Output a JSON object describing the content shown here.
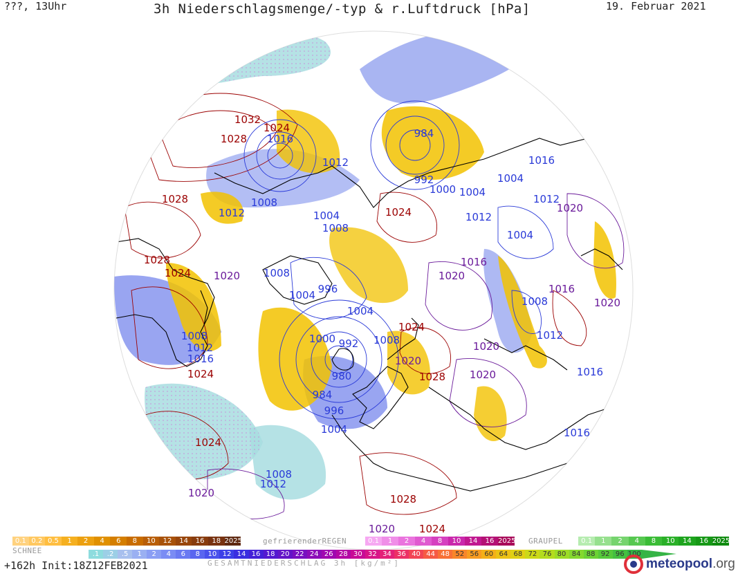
{
  "header": {
    "left": "???, 13Uhr",
    "title": "3h Niederschlagsmenge/-typ & r.Luftdruck [hPa]",
    "date": "19. Februar 2021"
  },
  "colors": {
    "high": "#9b0000",
    "low": "#2a3ad8",
    "mid": "#6a1a9a",
    "snow_shade": "#a8dde0",
    "rain_shade": "#f2c200",
    "coast": "#000000"
  },
  "pressure_labels": [
    {
      "text": "1032",
      "kind": "high"
    },
    {
      "text": "1028",
      "kind": "high"
    },
    {
      "text": "1024",
      "kind": "high"
    },
    {
      "text": "1016",
      "kind": "low"
    },
    {
      "text": "1012",
      "kind": "low"
    },
    {
      "text": "984",
      "kind": "low"
    },
    {
      "text": "992",
      "kind": "low"
    },
    {
      "text": "1000",
      "kind": "low"
    },
    {
      "text": "1004",
      "kind": "low"
    },
    {
      "text": "1004",
      "kind": "low"
    },
    {
      "text": "1016",
      "kind": "low"
    },
    {
      "text": "1028",
      "kind": "high"
    },
    {
      "text": "1012",
      "kind": "low"
    },
    {
      "text": "1008",
      "kind": "low"
    },
    {
      "text": "1004",
      "kind": "low"
    },
    {
      "text": "1008",
      "kind": "low"
    },
    {
      "text": "1024",
      "kind": "high"
    },
    {
      "text": "1012",
      "kind": "low"
    },
    {
      "text": "1012",
      "kind": "low"
    },
    {
      "text": "1020",
      "kind": "mid"
    },
    {
      "text": "1004",
      "kind": "low"
    },
    {
      "text": "1028",
      "kind": "high"
    },
    {
      "text": "1024",
      "kind": "high"
    },
    {
      "text": "1020",
      "kind": "mid"
    },
    {
      "text": "1008",
      "kind": "low"
    },
    {
      "text": "1004",
      "kind": "low"
    },
    {
      "text": "996",
      "kind": "low"
    },
    {
      "text": "1016",
      "kind": "mid"
    },
    {
      "text": "1020",
      "kind": "mid"
    },
    {
      "text": "1016",
      "kind": "mid"
    },
    {
      "text": "1020",
      "kind": "mid"
    },
    {
      "text": "1008",
      "kind": "low"
    },
    {
      "text": "1004",
      "kind": "low"
    },
    {
      "text": "1024",
      "kind": "high"
    },
    {
      "text": "1000",
      "kind": "low"
    },
    {
      "text": "992",
      "kind": "low"
    },
    {
      "text": "1008",
      "kind": "low"
    },
    {
      "text": "1008",
      "kind": "low"
    },
    {
      "text": "1012",
      "kind": "low"
    },
    {
      "text": "1016",
      "kind": "low"
    },
    {
      "text": "1024",
      "kind": "high"
    },
    {
      "text": "980",
      "kind": "low"
    },
    {
      "text": "984",
      "kind": "low"
    },
    {
      "text": "1020",
      "kind": "mid"
    },
    {
      "text": "1028",
      "kind": "high"
    },
    {
      "text": "1020",
      "kind": "mid"
    },
    {
      "text": "1012",
      "kind": "low"
    },
    {
      "text": "1020",
      "kind": "mid"
    },
    {
      "text": "1016",
      "kind": "low"
    },
    {
      "text": "996",
      "kind": "low"
    },
    {
      "text": "1004",
      "kind": "low"
    },
    {
      "text": "1024",
      "kind": "high"
    },
    {
      "text": "1016",
      "kind": "low"
    },
    {
      "text": "1008",
      "kind": "low"
    },
    {
      "text": "1012",
      "kind": "low"
    },
    {
      "text": "1020",
      "kind": "mid"
    },
    {
      "text": "1028",
      "kind": "high"
    },
    {
      "text": "1020",
      "kind": "mid"
    },
    {
      "text": "1024",
      "kind": "high"
    }
  ],
  "legend": {
    "schnee": {
      "label": "SCHNEE",
      "cells": [
        {
          "text": "0.1",
          "color": "#ffd27f"
        },
        {
          "text": "0.2",
          "color": "#ffc860"
        },
        {
          "text": "0.5",
          "color": "#ffbe40"
        },
        {
          "text": "1",
          "color": "#f5b020"
        },
        {
          "text": "2",
          "color": "#eca010"
        },
        {
          "text": "4",
          "color": "#e09000"
        },
        {
          "text": "6",
          "color": "#d47e00"
        },
        {
          "text": "8",
          "color": "#c86c00"
        },
        {
          "text": "10",
          "color": "#b85e08"
        },
        {
          "text": "12",
          "color": "#a8520a"
        },
        {
          "text": "14",
          "color": "#98460c"
        },
        {
          "text": "16",
          "color": "#883c0e"
        },
        {
          "text": "18",
          "color": "#783210"
        },
        {
          "text": "2025+",
          "color": "#5e2810"
        }
      ]
    },
    "regen": {
      "label": "gefrierenderREGEN",
      "cells": [
        {
          "text": "0.1",
          "color": "#f6a8f2"
        },
        {
          "text": "1",
          "color": "#f08ee8"
        },
        {
          "text": "2",
          "color": "#ea74de"
        },
        {
          "text": "4",
          "color": "#e05ad0"
        },
        {
          "text": "8",
          "color": "#d640c0"
        },
        {
          "text": "10",
          "color": "#ca28ac"
        },
        {
          "text": "14",
          "color": "#c01890"
        },
        {
          "text": "16",
          "color": "#b41074"
        },
        {
          "text": "2025+",
          "color": "#a80858"
        }
      ]
    },
    "graupel": {
      "label": "GRAUPEL",
      "cells": [
        {
          "text": "0.1",
          "color": "#b6ecb0"
        },
        {
          "text": "1",
          "color": "#96e08e"
        },
        {
          "text": "2",
          "color": "#76d46e"
        },
        {
          "text": "4",
          "color": "#56c850"
        },
        {
          "text": "8",
          "color": "#3abc36"
        },
        {
          "text": "10",
          "color": "#2ab028"
        },
        {
          "text": "14",
          "color": "#1ea41e"
        },
        {
          "text": "16",
          "color": "#169816"
        },
        {
          "text": "2025+",
          "color": "#0e8a0e"
        }
      ]
    },
    "gesamt": {
      "label": "GESAMTNIEDERSCHLAG 3h [kg/m²]",
      "cells": [
        {
          "text": ".1",
          "color": "#8edcde"
        },
        {
          "text": ".2",
          "color": "#9ccfe6"
        },
        {
          "text": ".5",
          "color": "#a8c0ee"
        },
        {
          "text": "1",
          "color": "#9ab0f2"
        },
        {
          "text": "2",
          "color": "#8a9ef4"
        },
        {
          "text": "4",
          "color": "#7a8cf4"
        },
        {
          "text": "6",
          "color": "#6a7af2"
        },
        {
          "text": "8",
          "color": "#5a66f0"
        },
        {
          "text": "10",
          "color": "#4a52ec"
        },
        {
          "text": "12",
          "color": "#3c40e8"
        },
        {
          "text": "14",
          "color": "#3a2ee0"
        },
        {
          "text": "16",
          "color": "#4420d8"
        },
        {
          "text": "18",
          "color": "#5418d0"
        },
        {
          "text": "20",
          "color": "#6414c8"
        },
        {
          "text": "22",
          "color": "#7810c0"
        },
        {
          "text": "24",
          "color": "#8c0cb8"
        },
        {
          "text": "26",
          "color": "#a008b0"
        },
        {
          "text": "28",
          "color": "#b408a4"
        },
        {
          "text": "30",
          "color": "#c80c96"
        },
        {
          "text": "32",
          "color": "#d81488"
        },
        {
          "text": "34",
          "color": "#e42078"
        },
        {
          "text": "36",
          "color": "#ec3066"
        },
        {
          "text": "40",
          "color": "#f24454"
        },
        {
          "text": "44",
          "color": "#f65a44"
        },
        {
          "text": "48",
          "color": "#f87036"
        },
        {
          "text": "52",
          "color": "#f8862a"
        },
        {
          "text": "56",
          "color": "#f89c20"
        },
        {
          "text": "60",
          "color": "#f4b018"
        },
        {
          "text": "64",
          "color": "#ecc214"
        },
        {
          "text": "68",
          "color": "#e0d014"
        },
        {
          "text": "72",
          "color": "#ccd818"
        },
        {
          "text": "76",
          "color": "#b4dc1e"
        },
        {
          "text": "80",
          "color": "#9cdc26"
        },
        {
          "text": "84",
          "color": "#84d82e"
        },
        {
          "text": "88",
          "color": "#6cd234"
        },
        {
          "text": "92",
          "color": "#56ca3a"
        },
        {
          "text": "96",
          "color": "#44c040"
        },
        {
          "text": "100",
          "color": "#36b446"
        }
      ]
    }
  },
  "footer": {
    "left": "+162h Init:18Z12FEB2021"
  },
  "brand": {
    "name": "meteopool",
    "tld": ".org"
  }
}
